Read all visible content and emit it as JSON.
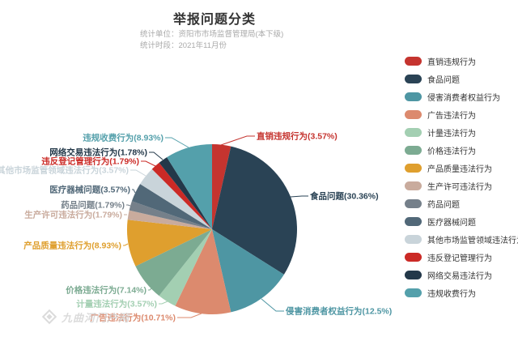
{
  "header": {
    "title": "举报问题分类",
    "subtitle_unit": "统计单位：资阳市市场监督管理局(本下级)",
    "subtitle_period": "统计时段：2021年11月份"
  },
  "watermark": {
    "text": "九曲河门户网"
  },
  "chart_data": {
    "type": "pie",
    "title": "举报问题分类",
    "unit_note": "统计单位：资阳市市场监督管理局(本下级)",
    "period_note": "统计时段：2021年11月份",
    "legend_position": "right",
    "label_format": "{name}({percent}%)",
    "items": [
      {
        "name": "直销违规行为",
        "value_pct": 3.57,
        "color": "#c5342f"
      },
      {
        "name": "食品问题",
        "value_pct": 30.36,
        "color": "#2a4355"
      },
      {
        "name": "侵害消费者权益行为",
        "value_pct": 12.5,
        "color": "#4e96a3"
      },
      {
        "name": "广告违法行为",
        "value_pct": 10.71,
        "color": "#dc8a6e"
      },
      {
        "name": "计量违法行为",
        "value_pct": 3.57,
        "color": "#a3cfb2"
      },
      {
        "name": "价格违法行为",
        "value_pct": 7.14,
        "color": "#7cab92"
      },
      {
        "name": "产品质量违法行为",
        "value_pct": 8.93,
        "color": "#df9f2e"
      },
      {
        "name": "生产许可违法行为",
        "value_pct": 1.79,
        "color": "#c9ab9d"
      },
      {
        "name": "药品问题",
        "value_pct": 1.79,
        "color": "#75808a"
      },
      {
        "name": "医疗器械问题",
        "value_pct": 3.57,
        "color": "#516878"
      },
      {
        "name": "其他市场监管领域违法行为",
        "value_pct": 3.57,
        "color": "#c9d4da"
      },
      {
        "name": "违反登记管理行为",
        "value_pct": 1.79,
        "color": "#cb2a26"
      },
      {
        "name": "网络交易违法行为",
        "value_pct": 1.78,
        "color": "#233849"
      },
      {
        "name": "违规收费行为",
        "value_pct": 8.93,
        "color": "#54a0ab"
      }
    ]
  }
}
